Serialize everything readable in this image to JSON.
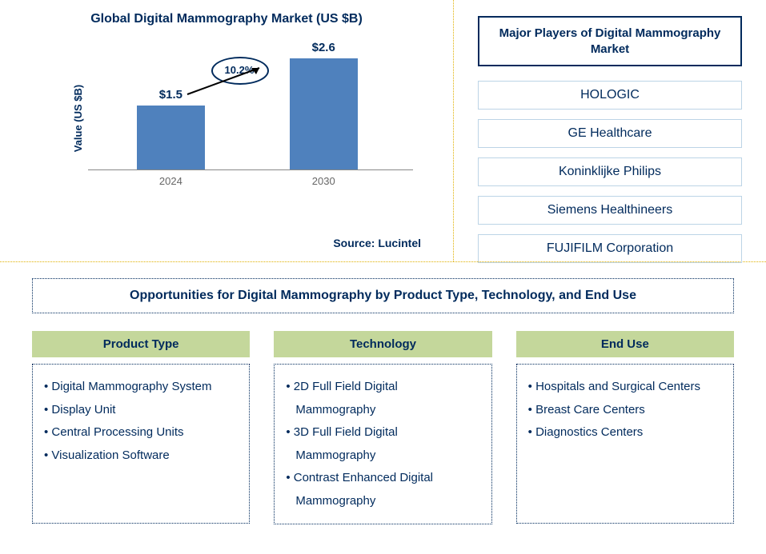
{
  "chart": {
    "type": "bar",
    "title": "Global Digital Mammography Market (US $B)",
    "ylabel": "Value (US $B)",
    "categories": [
      "2024",
      "2030"
    ],
    "values": [
      1.5,
      2.6
    ],
    "value_labels": [
      "$1.5",
      "$2.6"
    ],
    "bar_color": "#4f81bd",
    "text_color": "#002a5c",
    "axis_color": "#888888",
    "ymax": 3.0,
    "growth_label": "10.2%",
    "bar_positions_pct": [
      15,
      62
    ],
    "source": "Source: Lucintel"
  },
  "players": {
    "title": "Major Players of Digital Mammography Market",
    "title_border_color": "#002a5c",
    "item_border_color": "#bcd4e6",
    "items": [
      "HOLOGIC",
      "GE Healthcare",
      "Koninklijke Philips",
      "Siemens Healthineers",
      "FUJIFILM Corporation"
    ]
  },
  "opportunities": {
    "title": "Opportunities for Digital Mammography by Product Type, Technology, and End Use",
    "header_bg": "#c4d79b",
    "border_color": "#002a5c",
    "columns": [
      {
        "header": "Product Type",
        "items": [
          "Digital Mammography System",
          "Display Unit",
          "Central Processing Units",
          "Visualization Software"
        ]
      },
      {
        "header": "Technology",
        "items": [
          "2D Full Field Digital Mammography",
          "3D Full Field Digital Mammography",
          "Contrast Enhanced Digital Mammography"
        ]
      },
      {
        "header": "End Use",
        "items": [
          "Hospitals and Surgical Centers",
          "Breast Care Centers",
          "Diagnostics Centers"
        ]
      }
    ]
  },
  "divider_color": "#e0b000"
}
